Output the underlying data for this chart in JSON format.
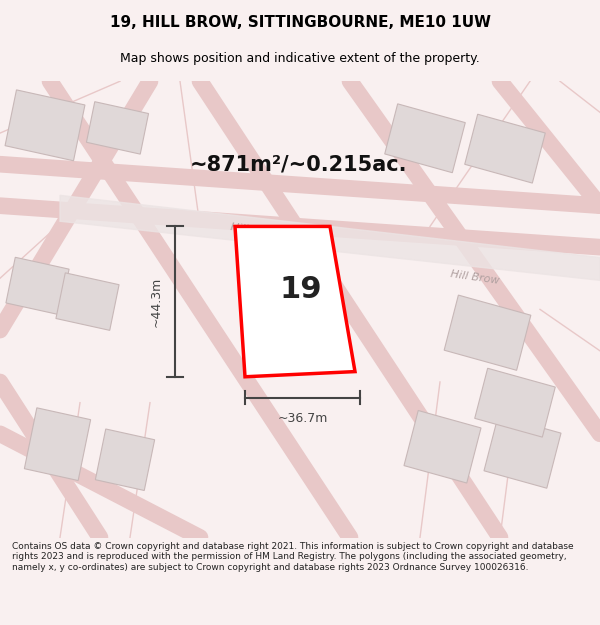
{
  "title": "19, HILL BROW, SITTINGBOURNE, ME10 1UW",
  "subtitle": "Map shows position and indicative extent of the property.",
  "area_label": "~871m²/~0.215ac.",
  "number_label": "19",
  "width_label": "~36.7m",
  "height_label": "~44.3m",
  "footer_text": "Contains OS data © Crown copyright and database right 2021. This information is subject to Crown copyright and database rights 2023 and is reproduced with the permission of HM Land Registry. The polygons (including the associated geometry, namely x, y co-ordinates) are subject to Crown copyright and database rights 2023 Ordnance Survey 100026316.",
  "bg_color": "#f9f0f0",
  "map_bg": "#fdf5f5",
  "road_color": "#e8c8c8",
  "building_color": "#e0d8d8",
  "building_edge": "#c8b8b8",
  "plot_color": "#ffffff",
  "plot_edge": "#ff0000",
  "dim_color": "#444444",
  "road_label_color": "#b0a0a0",
  "title_color": "#000000",
  "footer_color": "#222222",
  "map_area": [
    0.0,
    0.08,
    1.0,
    0.82
  ]
}
